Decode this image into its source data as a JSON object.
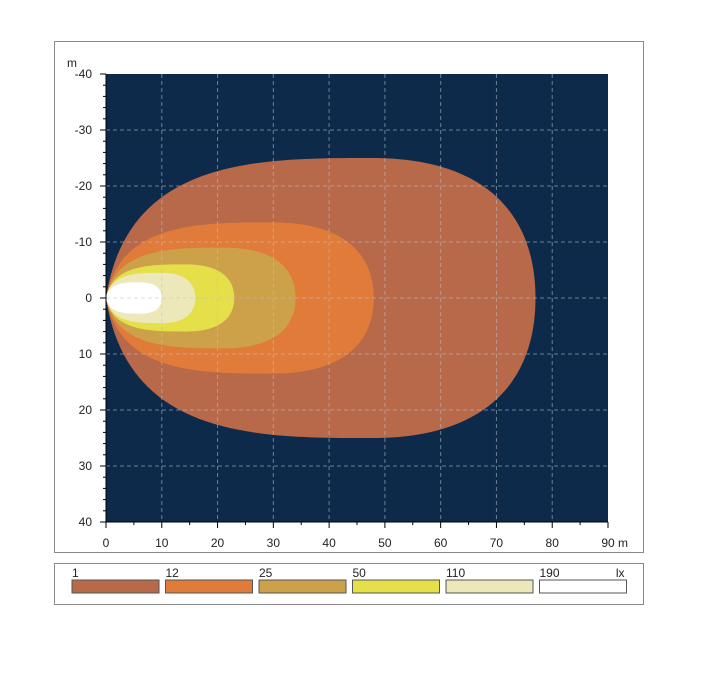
{
  "chart_data": {
    "type": "contour",
    "x_unit": "m",
    "y_unit": "m",
    "xlim": [
      0,
      90
    ],
    "ylim": [
      -40,
      40
    ],
    "x_ticks": [
      "0",
      "10",
      "20",
      "30",
      "40",
      "50",
      "60",
      "70",
      "80",
      "90"
    ],
    "y_ticks": [
      "-40",
      "-30",
      "-20",
      "-10",
      "0",
      "10",
      "20",
      "30",
      "40"
    ],
    "grid": true,
    "background_color": "#0e2a4a",
    "legend_unit": "lx",
    "levels": [
      {
        "value": "1",
        "color": "#b8694a",
        "x_extent": 77,
        "y_half_extent": 25
      },
      {
        "value": "12",
        "color": "#e07b39",
        "x_extent": 48,
        "y_half_extent": 13.5
      },
      {
        "value": "25",
        "color": "#cda04a",
        "x_extent": 34,
        "y_half_extent": 9
      },
      {
        "value": "50",
        "color": "#e5e04a",
        "x_extent": 23,
        "y_half_extent": 6
      },
      {
        "value": "110",
        "color": "#ece8ba",
        "x_extent": 16,
        "y_half_extent": 4.5
      },
      {
        "value": "190",
        "color": "#ffffff",
        "x_extent": 10,
        "y_half_extent": 2.8
      }
    ]
  }
}
